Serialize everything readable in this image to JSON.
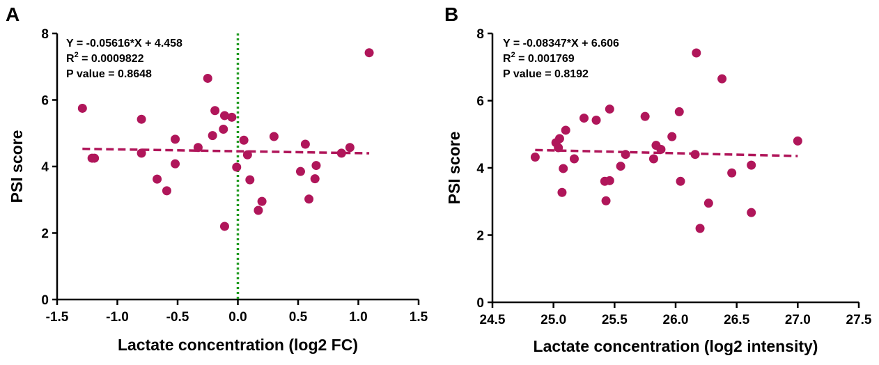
{
  "colors": {
    "point": "#b0165a",
    "fit_line": "#b0165a",
    "zero_line": "#1f9a1f",
    "axis": "#000000"
  },
  "chart_data": [
    {
      "type": "scatter",
      "panel_label": "A",
      "title": "",
      "xlabel": "Lactate concentration (log2 FC)",
      "ylabel": "PSI score",
      "xlim": [
        -1.5,
        1.5
      ],
      "ylim": [
        0,
        8
      ],
      "xticks": [
        "-1.5",
        "-1.0",
        "-0.5",
        "0.0",
        "0.5",
        "1.0",
        "1.5"
      ],
      "yticks": [
        "0",
        "2",
        "4",
        "6",
        "8"
      ],
      "grid": false,
      "reference_line": {
        "x": 0,
        "style": "dotted",
        "color": "#1f9a1f"
      },
      "fit": {
        "slope": -0.05616,
        "intercept": 4.458,
        "style": "dashed"
      },
      "annotation": {
        "equation": "Y = -0.05616*X + 4.458",
        "r2_prefix": "R",
        "r2_sup": "2",
        "r2_value": " = 0.0009822",
        "p_value": "P value = 0.8648"
      },
      "points": [
        {
          "x": -1.29,
          "y": 5.75
        },
        {
          "x": -1.21,
          "y": 4.25
        },
        {
          "x": -1.19,
          "y": 4.25
        },
        {
          "x": -0.8,
          "y": 5.42
        },
        {
          "x": -0.8,
          "y": 4.4
        },
        {
          "x": -0.67,
          "y": 3.62
        },
        {
          "x": -0.59,
          "y": 3.27
        },
        {
          "x": -0.52,
          "y": 4.82
        },
        {
          "x": -0.52,
          "y": 4.08
        },
        {
          "x": -0.33,
          "y": 4.57
        },
        {
          "x": -0.25,
          "y": 6.65
        },
        {
          "x": -0.21,
          "y": 4.93
        },
        {
          "x": -0.19,
          "y": 5.68
        },
        {
          "x": -0.12,
          "y": 5.12
        },
        {
          "x": -0.11,
          "y": 5.53
        },
        {
          "x": -0.05,
          "y": 5.48
        },
        {
          "x": -0.11,
          "y": 2.2
        },
        {
          "x": -0.01,
          "y": 3.98
        },
        {
          "x": 0.05,
          "y": 4.79
        },
        {
          "x": 0.08,
          "y": 4.35
        },
        {
          "x": 0.1,
          "y": 3.6
        },
        {
          "x": 0.17,
          "y": 2.68
        },
        {
          "x": 0.2,
          "y": 2.95
        },
        {
          "x": 0.3,
          "y": 4.9
        },
        {
          "x": 0.52,
          "y": 3.85
        },
        {
          "x": 0.56,
          "y": 4.67
        },
        {
          "x": 0.59,
          "y": 3.02
        },
        {
          "x": 0.64,
          "y": 3.63
        },
        {
          "x": 0.65,
          "y": 4.03
        },
        {
          "x": 0.86,
          "y": 4.4
        },
        {
          "x": 0.93,
          "y": 4.57
        },
        {
          "x": 1.09,
          "y": 7.42
        }
      ]
    },
    {
      "type": "scatter",
      "panel_label": "B",
      "title": "",
      "xlabel": "Lactate concentration (log2 intensity)",
      "ylabel": "PSI score",
      "xlim": [
        24.5,
        27.5
      ],
      "ylim": [
        0,
        8
      ],
      "xticks": [
        "24.5",
        "25.0",
        "25.5",
        "26.0",
        "26.5",
        "27.0",
        "27.5"
      ],
      "yticks": [
        "0",
        "2",
        "4",
        "6",
        "8"
      ],
      "grid": false,
      "fit": {
        "slope": -0.08347,
        "intercept": 6.606,
        "style": "dashed"
      },
      "annotation": {
        "equation": "Y = -0.08347*X + 6.606",
        "r2_prefix": "R",
        "r2_sup": "2",
        "r2_value": " = 0.001769",
        "p_value": "P value = 0.8192"
      },
      "points": [
        {
          "x": 24.85,
          "y": 4.32
        },
        {
          "x": 25.02,
          "y": 4.75
        },
        {
          "x": 25.04,
          "y": 4.6
        },
        {
          "x": 25.05,
          "y": 4.87
        },
        {
          "x": 25.07,
          "y": 3.27
        },
        {
          "x": 25.08,
          "y": 3.98
        },
        {
          "x": 25.1,
          "y": 5.12
        },
        {
          "x": 25.17,
          "y": 4.27
        },
        {
          "x": 25.25,
          "y": 5.48
        },
        {
          "x": 25.35,
          "y": 5.42
        },
        {
          "x": 25.42,
          "y": 3.6
        },
        {
          "x": 25.43,
          "y": 3.02
        },
        {
          "x": 25.46,
          "y": 3.62
        },
        {
          "x": 25.46,
          "y": 5.75
        },
        {
          "x": 25.55,
          "y": 4.05
        },
        {
          "x": 25.59,
          "y": 4.4
        },
        {
          "x": 25.75,
          "y": 5.53
        },
        {
          "x": 25.82,
          "y": 4.27
        },
        {
          "x": 25.84,
          "y": 4.67
        },
        {
          "x": 25.88,
          "y": 4.55
        },
        {
          "x": 25.97,
          "y": 4.93
        },
        {
          "x": 26.03,
          "y": 5.67
        },
        {
          "x": 26.04,
          "y": 3.6
        },
        {
          "x": 26.16,
          "y": 4.4
        },
        {
          "x": 26.17,
          "y": 7.42
        },
        {
          "x": 26.2,
          "y": 2.2
        },
        {
          "x": 26.27,
          "y": 2.95
        },
        {
          "x": 26.38,
          "y": 6.65
        },
        {
          "x": 26.46,
          "y": 3.85
        },
        {
          "x": 26.62,
          "y": 4.08
        },
        {
          "x": 26.62,
          "y": 2.67
        },
        {
          "x": 27.0,
          "y": 4.8
        }
      ]
    }
  ]
}
